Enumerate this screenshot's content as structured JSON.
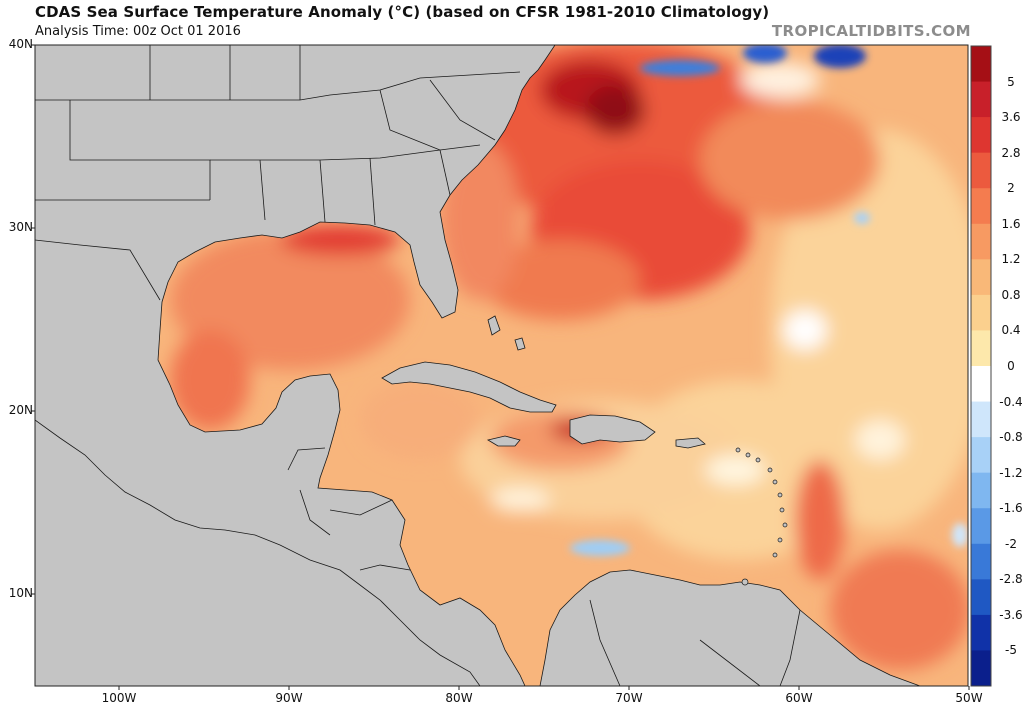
{
  "header": {
    "title": "CDAS Sea Surface Temperature Anomaly (°C) (based on CFSR 1981-2010 Climatology)",
    "analysis_time": "Analysis Time: 00z Oct 01 2016",
    "watermark": "TROPICALTIDBITS.COM"
  },
  "map": {
    "lat_labels": [
      "40N",
      "30N",
      "20N",
      "10N"
    ],
    "lon_labels": [
      "100W",
      "90W",
      "80W",
      "70W",
      "60W",
      "50W"
    ],
    "land_color": "#c4c4c4",
    "border_color": "#1a1a1a"
  },
  "colorbar": {
    "labels": [
      "5",
      "3.6",
      "2.8",
      "2",
      "1.6",
      "1.2",
      "0.8",
      "0.4",
      "0",
      "-0.4",
      "-0.8",
      "-1.2",
      "-1.6",
      "-2",
      "-2.8",
      "-3.6",
      "-5"
    ],
    "colors": [
      "#a50f15",
      "#c8202a",
      "#de3630",
      "#ec5a3e",
      "#f47c4f",
      "#f79a62",
      "#f9b878",
      "#fbd08e",
      "#fde8ab",
      "#ffffff",
      "#cfe6fb",
      "#a8d1f7",
      "#7fb7f0",
      "#5a99e6",
      "#3979d8",
      "#1f58c3",
      "#1032a8",
      "#0b1f8c"
    ]
  }
}
